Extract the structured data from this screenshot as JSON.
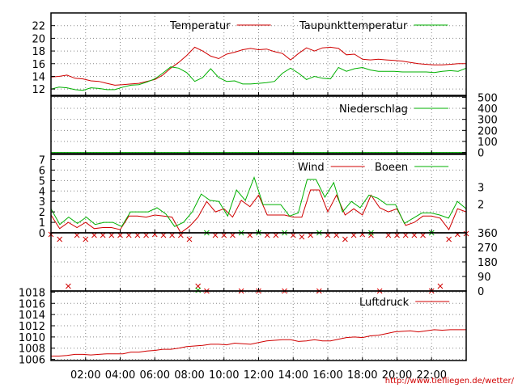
{
  "chart_data": [
    {
      "type": "line",
      "series": [
        {
          "name": "Temperatur",
          "color": "#d00000",
          "values": [
            13.9,
            14.0,
            14.2,
            13.7,
            13.6,
            13.3,
            13.2,
            12.9,
            12.6,
            12.7,
            12.8,
            12.9,
            13.2,
            13.5,
            14.2,
            15.3,
            16.2,
            17.3,
            18.6,
            18.0,
            17.2,
            16.8,
            17.5,
            17.8,
            18.2,
            18.4,
            18.2,
            18.3,
            17.9,
            17.6,
            16.6,
            17.6,
            18.5,
            18.0,
            18.5,
            18.6,
            18.4,
            17.4,
            17.5,
            16.7,
            16.6,
            16.7,
            16.6,
            16.5,
            16.4,
            16.2,
            16.0,
            15.9,
            15.8,
            15.8,
            15.9,
            16.0,
            16.0
          ]
        },
        {
          "name": "Taupunkttemperatur",
          "color": "#00b000",
          "values": [
            12.0,
            12.3,
            12.2,
            11.9,
            11.8,
            12.2,
            12.1,
            11.9,
            11.9,
            12.3,
            12.6,
            12.7,
            13.1,
            13.6,
            14.5,
            15.5,
            15.3,
            14.6,
            13.2,
            13.8,
            15.2,
            13.8,
            13.2,
            13.3,
            12.8,
            12.8,
            12.9,
            13.0,
            13.2,
            14.5,
            15.3,
            14.5,
            13.5,
            14.0,
            13.7,
            13.6,
            15.4,
            14.8,
            15.2,
            15.4,
            15.0,
            14.8,
            14.8,
            14.8,
            14.7,
            14.7,
            14.7,
            14.7,
            14.6,
            14.8,
            14.9,
            14.8,
            15.3
          ]
        }
      ],
      "ylim": [
        11,
        24
      ],
      "yticks": [
        12,
        14,
        16,
        18,
        20,
        22
      ]
    },
    {
      "type": "line",
      "series": [
        {
          "name": "Niederschlag",
          "color": "#00b000",
          "values": [
            0,
            0,
            0,
            0,
            0,
            0,
            0,
            0,
            0,
            0,
            0,
            0,
            0,
            0,
            0,
            0,
            0,
            0,
            0,
            0,
            0,
            0,
            0,
            0,
            0,
            0,
            0,
            0,
            0,
            0,
            0,
            0,
            0,
            0,
            0,
            0,
            0,
            0,
            0,
            0,
            0,
            0,
            0,
            0,
            0,
            0,
            0,
            0,
            0,
            0,
            0,
            0,
            0
          ]
        }
      ],
      "ylim": [
        -10,
        510
      ],
      "yticks": [
        0,
        100,
        200,
        300,
        400,
        500
      ]
    },
    {
      "type": "line",
      "series": [
        {
          "name": "Wind",
          "color": "#d00000",
          "values": [
            1.7,
            0.4,
            1.0,
            0.5,
            1.0,
            0.4,
            0.5,
            0.5,
            0.3,
            1.6,
            1.6,
            1.5,
            1.7,
            1.6,
            1.5,
            0.0,
            0.6,
            1.5,
            3.0,
            2.0,
            2.3,
            1.5,
            3.1,
            2.5,
            3.6,
            1.7,
            1.7,
            1.7,
            1.5,
            1.5,
            4.1,
            4.1,
            2.0,
            3.6,
            1.7,
            2.3,
            1.7,
            3.6,
            2.4,
            2.0,
            2.3,
            0.7,
            1.0,
            1.6,
            1.6,
            1.4,
            0.3,
            2.3,
            2.0
          ]
        },
        {
          "name": "Boeen",
          "color": "#00b000",
          "values": [
            2.3,
            0.8,
            1.5,
            0.9,
            1.5,
            0.8,
            1.0,
            1.0,
            0.6,
            2.0,
            2.0,
            2.0,
            2.4,
            1.8,
            0.6,
            1.0,
            2.0,
            3.7,
            3.1,
            3.0,
            1.6,
            4.1,
            3.1,
            5.3,
            2.7,
            2.7,
            2.7,
            1.6,
            1.9,
            5.1,
            5.1,
            3.4,
            4.8,
            2.0,
            3.0,
            2.4,
            3.6,
            3.3,
            2.7,
            2.7,
            0.9,
            1.4,
            1.9,
            1.9,
            1.7,
            1.4,
            3.0,
            2.3
          ]
        }
      ],
      "ylim": [
        0,
        7.5
      ],
      "yticks": [
        0,
        1,
        2,
        3,
        4,
        5,
        6,
        7
      ],
      "right_ticks": [
        "2",
        "3"
      ]
    },
    {
      "type": "scatter",
      "ylim": [
        0,
        360
      ],
      "yticks": [
        0,
        90,
        180,
        270,
        360
      ],
      "series": [
        {
          "name": "",
          "color": "#d00000",
          "points": [
            [
              0.0,
              350
            ],
            [
              0.5,
              320
            ],
            [
              1.0,
              30
            ],
            [
              1.5,
              345
            ],
            [
              2.0,
              320
            ],
            [
              2.5,
              345
            ],
            [
              3.0,
              345
            ],
            [
              3.5,
              345
            ],
            [
              4.0,
              345
            ],
            [
              4.5,
              345
            ],
            [
              5.0,
              345
            ],
            [
              5.5,
              345
            ],
            [
              6.0,
              350
            ],
            [
              6.5,
              345
            ],
            [
              7.0,
              345
            ],
            [
              7.5,
              345
            ],
            [
              8.0,
              320
            ],
            [
              8.5,
              30
            ],
            [
              9.0,
              0
            ],
            [
              9.5,
              345
            ],
            [
              10.0,
              345
            ],
            [
              10.5,
              345
            ],
            [
              11.0,
              0
            ],
            [
              11.5,
              345
            ],
            [
              12.0,
              0
            ],
            [
              12.5,
              345
            ],
            [
              13.0,
              345
            ],
            [
              13.5,
              0
            ],
            [
              14.0,
              345
            ],
            [
              14.5,
              335
            ],
            [
              15.0,
              345
            ],
            [
              15.5,
              0
            ],
            [
              16.0,
              345
            ],
            [
              16.5,
              345
            ],
            [
              17.0,
              320
            ],
            [
              17.5,
              345
            ],
            [
              18.0,
              350
            ],
            [
              18.5,
              345
            ],
            [
              19.0,
              0
            ],
            [
              19.5,
              345
            ],
            [
              20.0,
              345
            ],
            [
              20.5,
              345
            ],
            [
              21.0,
              345
            ],
            [
              21.5,
              345
            ],
            [
              22.0,
              0
            ],
            [
              22.5,
              30
            ],
            [
              23.0,
              320
            ],
            [
              23.5,
              350
            ],
            [
              24.0,
              355
            ]
          ]
        },
        {
          "name": "",
          "color": "#00b000",
          "points": [
            [
              8.5,
              5
            ],
            [
              9.0,
              360
            ],
            [
              11.0,
              360
            ],
            [
              12.0,
              360
            ],
            [
              13.5,
              360
            ],
            [
              15.5,
              360
            ],
            [
              18.5,
              360
            ],
            [
              22.0,
              360
            ]
          ]
        }
      ]
    },
    {
      "type": "line",
      "series": [
        {
          "name": "Luftdruck",
          "color": "#d00000",
          "values": [
            1006.6,
            1006.6,
            1006.7,
            1006.9,
            1006.9,
            1006.8,
            1006.9,
            1007.0,
            1007.0,
            1007.0,
            1007.3,
            1007.3,
            1007.5,
            1007.6,
            1007.8,
            1007.8,
            1008.0,
            1008.3,
            1008.4,
            1008.5,
            1008.7,
            1008.7,
            1008.6,
            1008.9,
            1008.8,
            1008.7,
            1009.0,
            1009.3,
            1009.4,
            1009.5,
            1009.5,
            1009.2,
            1009.3,
            1009.5,
            1009.3,
            1009.3,
            1009.6,
            1009.9,
            1010.0,
            1009.9,
            1010.2,
            1010.3,
            1010.6,
            1010.9,
            1011.0,
            1011.1,
            1010.9,
            1011.1,
            1011.3,
            1011.2,
            1011.3,
            1011.3,
            1011.3
          ]
        }
      ],
      "ylim": [
        1005.8,
        1018.2
      ],
      "yticks": [
        1006,
        1008,
        1010,
        1012,
        1014,
        1016,
        1018
      ]
    }
  ],
  "x_axis": {
    "range": [
      0,
      24
    ],
    "tick_labels": [
      "02:00",
      "04:00",
      "06:00",
      "08:00",
      "10:00",
      "12:00",
      "14:00",
      "16:00",
      "18:00",
      "20:00",
      "22:00"
    ]
  },
  "credit": "http://www.tiefliegen.de/wetter/"
}
